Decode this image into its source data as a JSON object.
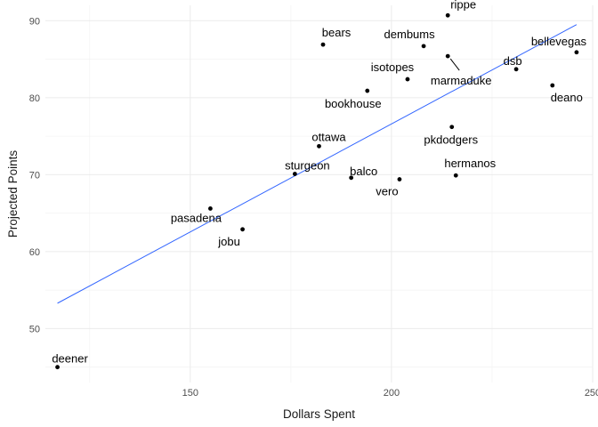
{
  "chart_data": {
    "type": "scatter",
    "title": "",
    "xlabel": "Dollars Spent",
    "ylabel": "Projected Points",
    "xlim": [
      114,
      250
    ],
    "ylim": [
      43,
      92
    ],
    "x_ticks": [
      150,
      200,
      250
    ],
    "y_ticks": [
      50,
      60,
      70,
      80,
      90
    ],
    "grid": true,
    "points": [
      {
        "label": "rippe",
        "x": 214,
        "y": 90.7
      },
      {
        "label": "bears",
        "x": 183,
        "y": 86.9
      },
      {
        "label": "dembums",
        "x": 208,
        "y": 86.7
      },
      {
        "label": "bellevegas",
        "x": 246,
        "y": 85.9
      },
      {
        "label": "marmaduke",
        "x": 214,
        "y": 85.4
      },
      {
        "label": "dsb",
        "x": 231,
        "y": 83.7
      },
      {
        "label": "isotopes",
        "x": 204,
        "y": 82.4
      },
      {
        "label": "deano",
        "x": 240,
        "y": 81.6
      },
      {
        "label": "bookhouse",
        "x": 194,
        "y": 80.9
      },
      {
        "label": "pkdodgers",
        "x": 215,
        "y": 76.2
      },
      {
        "label": "ottawa",
        "x": 182,
        "y": 73.7
      },
      {
        "label": "sturgeon",
        "x": 176,
        "y": 70.1
      },
      {
        "label": "hermanos",
        "x": 216,
        "y": 69.9
      },
      {
        "label": "balco",
        "x": 190,
        "y": 69.6
      },
      {
        "label": "vero",
        "x": 202,
        "y": 69.4
      },
      {
        "label": "pasadena",
        "x": 155,
        "y": 65.6
      },
      {
        "label": "jobu",
        "x": 163,
        "y": 62.9
      },
      {
        "label": "deener",
        "x": 117,
        "y": 45.0
      }
    ],
    "trend_line": {
      "x": [
        117,
        246
      ],
      "y": [
        53.3,
        89.5
      ],
      "color": "#3366ff"
    }
  }
}
